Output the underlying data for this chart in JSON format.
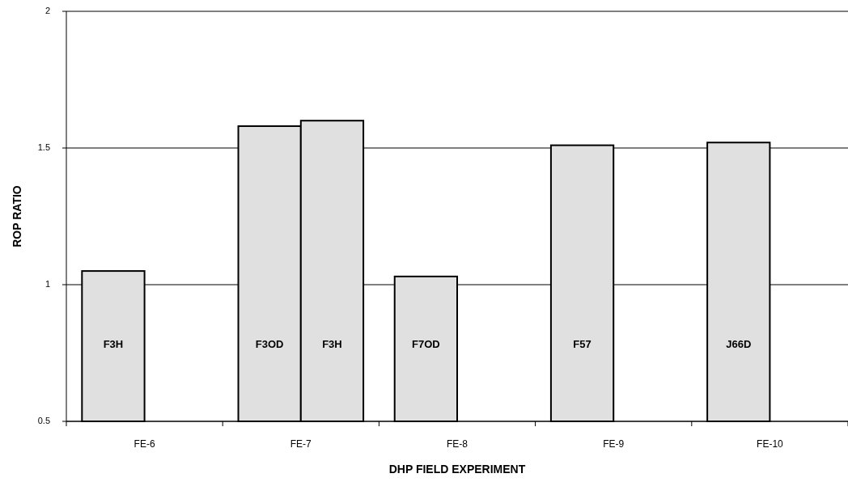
{
  "chart_data": {
    "type": "bar",
    "xlabel": "DHP FIELD EXPERIMENT",
    "ylabel": "ROP RATIO",
    "categories": [
      "FE-6",
      "FE-7",
      "FE-8",
      "FE-9",
      "FE-10"
    ],
    "series": [
      {
        "color": "#e0e0e0",
        "values": [
          1.05,
          1.58,
          1.03,
          1.51,
          1.52
        ],
        "value_labels": [
          "F3H",
          "F3OD",
          "F7OD",
          "F57",
          "J66D"
        ]
      },
      {
        "color": "#e0e0e0",
        "values": [
          null,
          1.6,
          null,
          null,
          null
        ],
        "value_labels": [
          null,
          "F3H",
          null,
          null,
          null
        ]
      }
    ],
    "ylim": [
      0.5,
      2
    ],
    "yticks": [
      0.5,
      1,
      1.5,
      2
    ],
    "grid": "y"
  }
}
